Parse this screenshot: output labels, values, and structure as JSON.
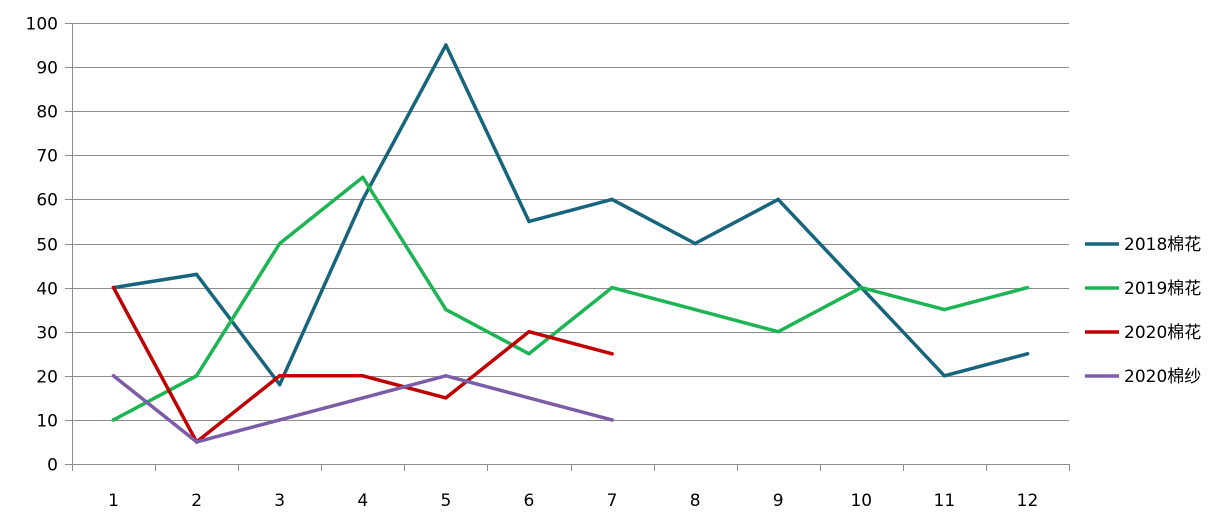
{
  "chart_data": {
    "type": "line",
    "title": "",
    "xlabel": "",
    "ylabel": "",
    "x": [
      1,
      2,
      3,
      4,
      5,
      6,
      7,
      8,
      9,
      10,
      11,
      12
    ],
    "x_tick_labels": [
      "1",
      "2",
      "3",
      "4",
      "5",
      "6",
      "7",
      "8",
      "9",
      "10",
      "11",
      "12"
    ],
    "ylim": [
      0,
      100
    ],
    "y_ticks": [
      0,
      10,
      20,
      30,
      40,
      50,
      60,
      70,
      80,
      90,
      100
    ],
    "y_tick_labels": [
      "0",
      "10",
      "20",
      "30",
      "40",
      "50",
      "60",
      "70",
      "80",
      "90",
      "100"
    ],
    "grid": "horizontal",
    "legend_position": "right",
    "series": [
      {
        "name": "2018棉花",
        "color": "#17657d",
        "values": [
          40,
          43,
          18,
          60,
          95,
          55,
          60,
          50,
          60,
          40,
          20,
          25
        ]
      },
      {
        "name": "2019棉花",
        "color": "#1db553",
        "values": [
          10,
          20,
          50,
          65,
          35,
          25,
          40,
          35,
          30,
          40,
          35,
          40
        ]
      },
      {
        "name": "2020棉花",
        "color": "#c00000",
        "values": [
          40,
          5,
          20,
          20,
          15,
          30,
          25,
          null,
          null,
          null,
          null,
          null
        ]
      },
      {
        "name": "2020棉纱",
        "color": "#7b5ca6",
        "values": [
          20,
          5,
          10,
          15,
          20,
          15,
          10,
          null,
          null,
          null,
          null,
          null
        ]
      }
    ]
  }
}
